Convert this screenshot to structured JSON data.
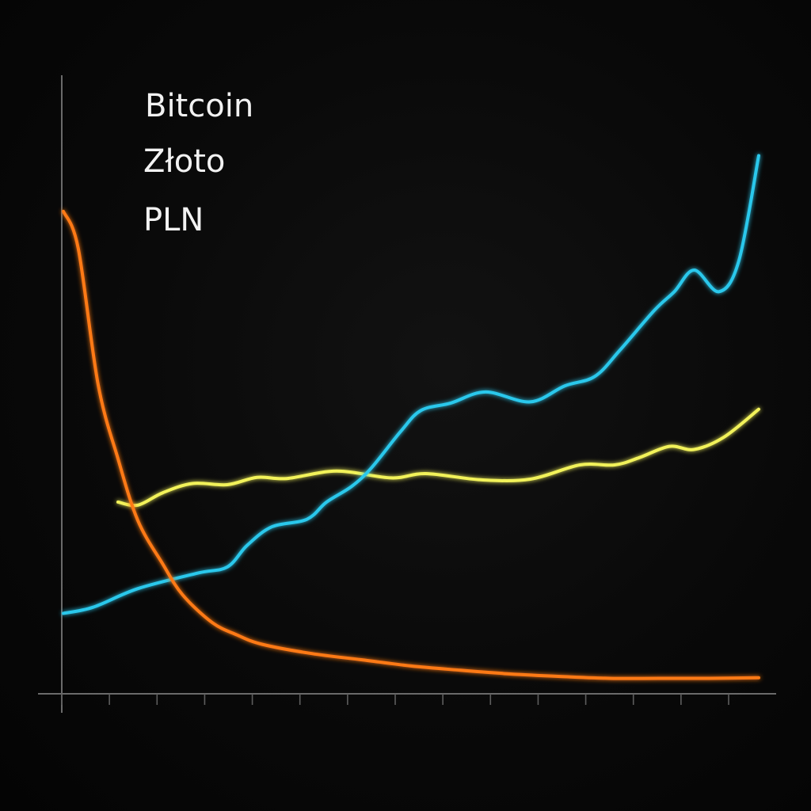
{
  "chart_data": {
    "type": "line",
    "title": "",
    "xlabel": "",
    "ylabel": "",
    "grid": false,
    "legend_position": "top-left",
    "xlim": [
      0,
      14
    ],
    "ylim": [
      0,
      100
    ],
    "x_tick_count": 15,
    "series": [
      {
        "name": "Bitcoin",
        "color": "#ff7a12",
        "points": [
          [
            0,
            78
          ],
          [
            0.3,
            72
          ],
          [
            0.7,
            50
          ],
          [
            1.1,
            38
          ],
          [
            1.5,
            28
          ],
          [
            2.0,
            21
          ],
          [
            2.4,
            16
          ],
          [
            3.0,
            11.5
          ],
          [
            3.5,
            9.5
          ],
          [
            4.0,
            8
          ],
          [
            5.0,
            6.5
          ],
          [
            6.0,
            5.5
          ],
          [
            7.0,
            4.5
          ],
          [
            8.0,
            3.8
          ],
          [
            9.0,
            3.2
          ],
          [
            10.0,
            2.8
          ],
          [
            11.0,
            2.5
          ],
          [
            12.0,
            2.5
          ],
          [
            13.0,
            2.5
          ],
          [
            14.0,
            2.6
          ]
        ]
      },
      {
        "name": "Złoto",
        "color": "#f2f25a",
        "points": [
          [
            1.1,
            31
          ],
          [
            1.5,
            30.5
          ],
          [
            2.0,
            32.5
          ],
          [
            2.6,
            34
          ],
          [
            3.3,
            33.8
          ],
          [
            3.9,
            35
          ],
          [
            4.5,
            34.8
          ],
          [
            5.5,
            36
          ],
          [
            6.6,
            34.9
          ],
          [
            7.3,
            35.6
          ],
          [
            8.4,
            34.6
          ],
          [
            9.4,
            34.7
          ],
          [
            10.4,
            37
          ],
          [
            11.1,
            37
          ],
          [
            11.6,
            38.2
          ],
          [
            12.2,
            40
          ],
          [
            12.7,
            39.5
          ],
          [
            13.3,
            41.5
          ],
          [
            14.0,
            46
          ]
        ]
      },
      {
        "name": "PLN",
        "color": "#2bc8ec",
        "points": [
          [
            0,
            13
          ],
          [
            0.6,
            14
          ],
          [
            1.5,
            17
          ],
          [
            2.7,
            19.5
          ],
          [
            3.3,
            20.5
          ],
          [
            3.7,
            24
          ],
          [
            4.2,
            27
          ],
          [
            4.9,
            28.2
          ],
          [
            5.3,
            31
          ],
          [
            5.8,
            33.5
          ],
          [
            6.2,
            36.5
          ],
          [
            6.8,
            42.5
          ],
          [
            7.2,
            45.8
          ],
          [
            7.8,
            47
          ],
          [
            8.5,
            48.8
          ],
          [
            9.4,
            47.2
          ],
          [
            10.1,
            49.8
          ],
          [
            10.7,
            51.3
          ],
          [
            11.2,
            55.5
          ],
          [
            11.9,
            62
          ],
          [
            12.3,
            65
          ],
          [
            12.7,
            68.5
          ],
          [
            13.2,
            65
          ],
          [
            13.6,
            70
          ],
          [
            14.0,
            87
          ]
        ]
      }
    ]
  }
}
